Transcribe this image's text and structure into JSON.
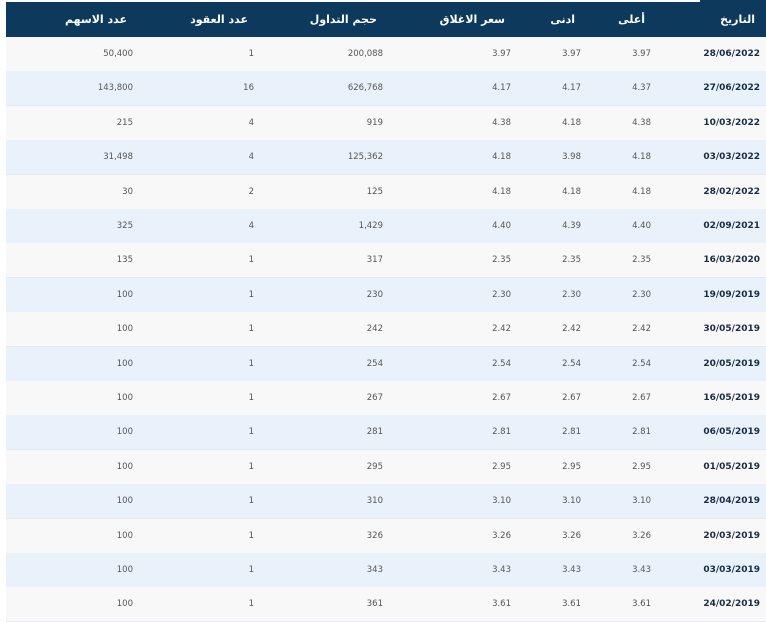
{
  "table": {
    "columns": [
      "التاريخ",
      "أعلى",
      "ادنى",
      "سعر الاغلاق",
      "حجم التداول",
      "عدد العقود",
      "عدد الاسهم"
    ],
    "rows": [
      [
        "28/06/2022",
        "3.97",
        "3.97",
        "3.97",
        "200,088",
        "1",
        "50,400"
      ],
      [
        "27/06/2022",
        "4.37",
        "4.17",
        "4.17",
        "626,768",
        "16",
        "143,800"
      ],
      [
        "10/03/2022",
        "4.38",
        "4.18",
        "4.38",
        "919",
        "4",
        "215"
      ],
      [
        "03/03/2022",
        "4.18",
        "3.98",
        "4.18",
        "125,362",
        "4",
        "31,498"
      ],
      [
        "28/02/2022",
        "4.18",
        "4.18",
        "4.18",
        "125",
        "2",
        "30"
      ],
      [
        "02/09/2021",
        "4.40",
        "4.39",
        "4.40",
        "1,429",
        "4",
        "325"
      ],
      [
        "16/03/2020",
        "2.35",
        "2.35",
        "2.35",
        "317",
        "1",
        "135"
      ],
      [
        "19/09/2019",
        "2.30",
        "2.30",
        "2.30",
        "230",
        "1",
        "100"
      ],
      [
        "30/05/2019",
        "2.42",
        "2.42",
        "2.42",
        "242",
        "1",
        "100"
      ],
      [
        "20/05/2019",
        "2.54",
        "2.54",
        "2.54",
        "254",
        "1",
        "100"
      ],
      [
        "16/05/2019",
        "2.67",
        "2.67",
        "2.67",
        "267",
        "1",
        "100"
      ],
      [
        "06/05/2019",
        "2.81",
        "2.81",
        "2.81",
        "281",
        "1",
        "100"
      ],
      [
        "01/05/2019",
        "2.95",
        "2.95",
        "2.95",
        "295",
        "1",
        "100"
      ],
      [
        "28/04/2019",
        "3.10",
        "3.10",
        "3.10",
        "310",
        "1",
        "100"
      ],
      [
        "20/03/2019",
        "3.26",
        "3.26",
        "3.26",
        "326",
        "1",
        "100"
      ],
      [
        "03/03/2019",
        "3.43",
        "3.43",
        "3.43",
        "343",
        "1",
        "100"
      ],
      [
        "24/02/2019",
        "3.61",
        "3.61",
        "3.61",
        "361",
        "1",
        "100"
      ]
    ]
  }
}
